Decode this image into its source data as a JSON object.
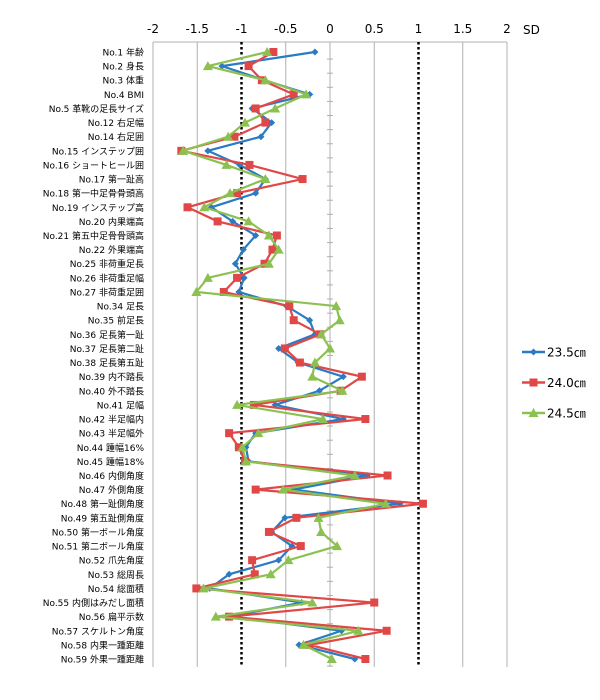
{
  "chart_data": {
    "type": "line",
    "orientation": "horizontal-profile",
    "title": "",
    "xlabel": "SD",
    "xlim": [
      -2,
      2
    ],
    "xticks": [
      -2,
      -1.5,
      -1,
      -0.5,
      0,
      0.5,
      1,
      1.5,
      2
    ],
    "xtick_labels": [
      "-2",
      "-1.5",
      "-1",
      "-0.5",
      "0",
      "0.5",
      "1",
      "1.5",
      "2"
    ],
    "reference_lines": [
      -1,
      1
    ],
    "grid": true,
    "legend_position": "right",
    "categories": [
      "No.1 年齢",
      "No.2 身長",
      "No.3 体重",
      "No.4 BMI",
      "No.5 革靴の足長サイズ",
      "No.12 右足幅",
      "No.14 右足囲",
      "No.15 インステップ囲",
      "No.16 ショートヒール囲",
      "No.17 第一趾高",
      "No.18 第一中足骨骨頭高",
      "No.19 インステップ高",
      "No.20 内果端高",
      "No.21 第五中足骨骨頭高",
      "No.22 外果端高",
      "No.25 非荷重足長",
      "No.26 非荷重足幅",
      "No.27 非荷重足囲",
      "No.34 足長",
      "No.35 前足長",
      "No.36 足長第一趾",
      "No.37 足長第二趾",
      "No.38 足長第五趾",
      "No.39 内不踏長",
      "No.40 外不踏長",
      "No.41 足幅",
      "No.42 半足幅内",
      "No.43 半足幅外",
      "No.44 踵幅16%",
      "No.45 踵幅18%",
      "No.46 内側角度",
      "No.47 外側角度",
      "No.48 第一趾側角度",
      "No.49 第五趾側角度",
      "No.50 第一ボール角度",
      "No.51 第二ボール角度",
      "No.52 爪先角度",
      "No.53 総周長",
      "No.54 総面積",
      "No.55 内側はみだし面積",
      "No.56 扁平示数",
      "No.57 スケルトン角度",
      "No.58 内果一踵距離",
      "No.59 外果一踵距離"
    ],
    "series": [
      {
        "name": "23.5㎝",
        "color": "#2a7bc4",
        "marker": "diamond",
        "values": [
          -0.17,
          -1.22,
          -0.74,
          -0.23,
          -0.88,
          -0.66,
          -0.78,
          -1.38,
          -1.02,
          -0.73,
          -0.84,
          -1.34,
          -1.1,
          -0.84,
          -0.98,
          -1.07,
          -0.97,
          -1.03,
          -0.49,
          -0.23,
          -0.17,
          -0.58,
          -0.36,
          0.15,
          -0.12,
          -0.62,
          0.15,
          -0.84,
          -0.95,
          -0.92,
          0.42,
          -0.41,
          0.79,
          -0.51,
          -0.66,
          -0.43,
          -0.58,
          -1.14,
          -1.36,
          -0.32,
          -1.13,
          0.13,
          -0.35,
          0.28
        ]
      },
      {
        "name": "24.0㎝",
        "color": "#e04848",
        "marker": "square",
        "values": [
          -0.64,
          -0.92,
          -0.77,
          -0.41,
          -0.84,
          -0.73,
          -1.08,
          -1.68,
          -0.91,
          -0.31,
          -1.05,
          -1.61,
          -1.27,
          -0.6,
          -0.65,
          -0.74,
          -1.05,
          -1.2,
          -0.46,
          -0.41,
          -0.11,
          -0.51,
          -0.34,
          0.36,
          0.12,
          -0.86,
          0.4,
          -1.14,
          -1.03,
          -0.96,
          0.65,
          -0.84,
          1.05,
          -0.38,
          -0.69,
          -0.33,
          -0.88,
          -0.85,
          -1.51,
          0.5,
          -1.14,
          0.64,
          -0.23,
          0.4
        ]
      },
      {
        "name": "24.5㎝",
        "color": "#8cc151",
        "marker": "triangle",
        "values": [
          -0.71,
          -1.38,
          -0.73,
          -0.27,
          -0.62,
          -0.96,
          -1.15,
          -1.66,
          -1.17,
          -0.73,
          -1.13,
          -1.42,
          -0.92,
          -0.69,
          -0.58,
          -0.69,
          -1.38,
          -1.51,
          0.07,
          0.11,
          -0.1,
          0.0,
          -0.17,
          -0.2,
          0.14,
          -1.05,
          -0.08,
          -0.81,
          -0.99,
          -0.95,
          0.28,
          -0.53,
          0.63,
          -0.13,
          -0.1,
          0.08,
          -0.47,
          -0.67,
          -1.43,
          -0.2,
          -1.29,
          0.32,
          -0.3,
          0.02
        ]
      }
    ]
  }
}
